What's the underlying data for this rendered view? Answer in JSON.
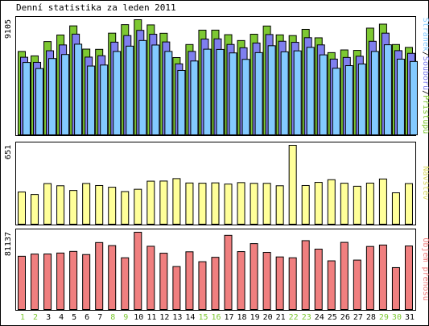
{
  "chart_data": {
    "type": "bar",
    "title": "Denní statistika za leden 2011",
    "categories": [
      "1",
      "2",
      "3",
      "4",
      "5",
      "6",
      "7",
      "8",
      "9",
      "10",
      "11",
      "12",
      "13",
      "14",
      "15",
      "16",
      "17",
      "18",
      "19",
      "20",
      "21",
      "22",
      "23",
      "24",
      "25",
      "26",
      "27",
      "28",
      "29",
      "30",
      "31"
    ],
    "weekend_days": [
      "1",
      "2",
      "8",
      "9",
      "15",
      "16",
      "22",
      "23",
      "29",
      "30"
    ],
    "panels": [
      {
        "name": "top",
        "y_max_label": "9105",
        "y_max": 9105,
        "legend_parts": [
          "Stránek",
          "Souborů",
          "Přístupů"
        ],
        "series": [
          {
            "name": "Přístupů",
            "color": "#7dc832",
            "values": [
              6594,
              6245,
              7377,
              7896,
              8619,
              6781,
              6762,
              8043,
              8716,
              9105,
              8696,
              8034,
              6113,
              7144,
              8281,
              8283,
              7922,
              7459,
              7958,
              8607,
              7907,
              7851,
              8342,
              7675,
              6503,
              6716,
              6681,
              8440,
              8756,
              7144,
              6914
            ]
          },
          {
            "name": "Souborů",
            "color": "#7f7fef",
            "values": [
              6137,
              5734,
              6651,
              7110,
              7966,
              6148,
              6256,
              7331,
              7852,
              8264,
              7955,
              7347,
              5615,
              6600,
              7577,
              7591,
              7149,
              6886,
              7263,
              7934,
              7403,
              7318,
              7684,
              7114,
              5991,
              6122,
              6216,
              7399,
              8043,
              6660,
              6447
            ]
          },
          {
            "name": "Stránek",
            "color": "#83caff",
            "values": [
              5724,
              5241,
              6034,
              6353,
              7170,
              5441,
              5520,
              6594,
              7016,
              7461,
              7103,
              6598,
              5094,
              5840,
              6775,
              6756,
              6480,
              5969,
              6503,
              7046,
              6567,
              6642,
              6920,
              6326,
              5266,
              5474,
              5602,
              6595,
              7124,
              5987,
              5804
            ]
          }
        ]
      },
      {
        "name": "middle",
        "y_max_label": "651",
        "y_max": 651,
        "legend_parts": [
          "Návštěv"
        ],
        "series": [
          {
            "name": "Návštěv",
            "color": "#ffff99",
            "values": [
              266,
              245,
              335,
              317,
              278,
              336,
              319,
              305,
              269,
              288,
              355,
              356,
              376,
              340,
              338,
              341,
              331,
              343,
              337,
              337,
              317,
              651,
              319,
              345,
              367,
              338,
              313,
              339,
              373,
              259,
              335
            ]
          }
        ]
      },
      {
        "name": "bottom",
        "y_max_label": "81137",
        "y_max": 81137,
        "legend_parts": [
          "Objem přenosu"
        ],
        "series": [
          {
            "name": "Objem přenosu",
            "color": "#f07f7f",
            "values": [
              55900,
              58200,
              58300,
              59300,
              61000,
              57700,
              70300,
              67100,
              54300,
              81137,
              66400,
              59100,
              45100,
              60600,
              50200,
              54800,
              77900,
              60800,
              69200,
              60000,
              55200,
              54300,
              72300,
              63400,
              51100,
              70500,
              51900,
              66200,
              67700,
              44000,
              66700
            ]
          }
        ]
      }
    ]
  }
}
